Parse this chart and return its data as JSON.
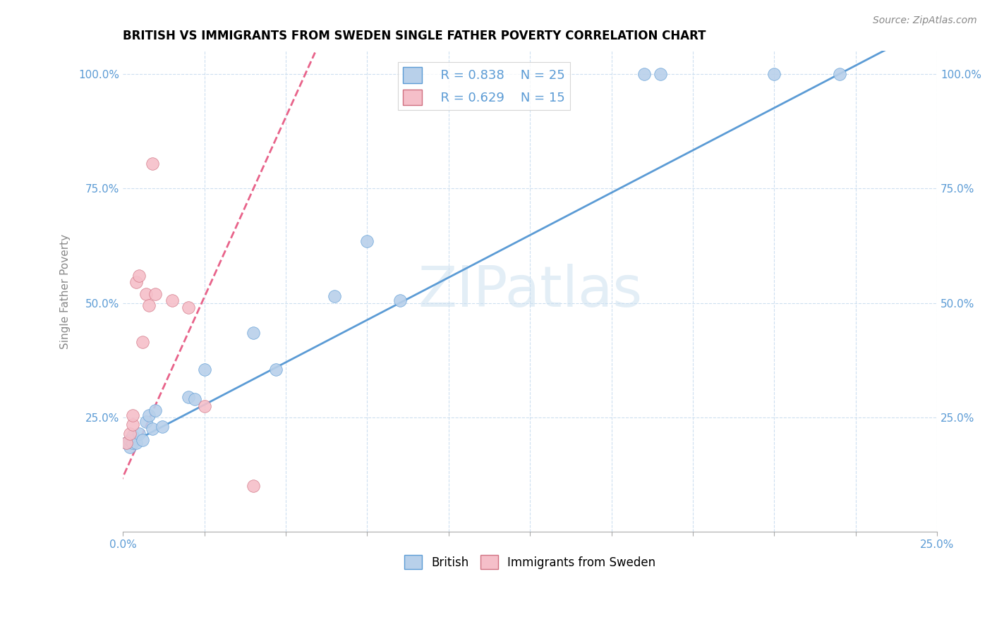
{
  "title": "BRITISH VS IMMIGRANTS FROM SWEDEN SINGLE FATHER POVERTY CORRELATION CHART",
  "source": "Source: ZipAtlas.com",
  "ylabel": "Single Father Poverty",
  "xmin": 0.0,
  "xmax": 0.25,
  "ymin": 0.0,
  "ymax": 1.05,
  "xtick_vals": [
    0.0,
    0.025,
    0.05,
    0.075,
    0.1,
    0.125,
    0.15,
    0.175,
    0.2,
    0.225,
    0.25
  ],
  "ytick_vals": [
    0.0,
    0.25,
    0.5,
    0.75,
    1.0
  ],
  "ytick_labels": [
    "",
    "25.0%",
    "50.0%",
    "75.0%",
    "100.0%"
  ],
  "xtick_labels": [
    "0.0%",
    "",
    "",
    "",
    "",
    "",
    "",
    "",
    "",
    "",
    "25.0%"
  ],
  "british_color": "#b8d0ea",
  "sweden_color": "#f5bfc9",
  "british_line_color": "#5b9bd5",
  "sweden_line_color": "#e8638a",
  "watermark": "ZIPatlas",
  "legend_R_british": "R = 0.838",
  "legend_N_british": "N = 25",
  "legend_R_sweden": "R = 0.629",
  "legend_N_sweden": "N = 15",
  "british_x": [
    0.001,
    0.002,
    0.002,
    0.003,
    0.003,
    0.004,
    0.005,
    0.006,
    0.007,
    0.008,
    0.009,
    0.01,
    0.012,
    0.02,
    0.022,
    0.025,
    0.04,
    0.047,
    0.065,
    0.075,
    0.085,
    0.16,
    0.165,
    0.2,
    0.22
  ],
  "british_y": [
    0.195,
    0.185,
    0.2,
    0.195,
    0.21,
    0.195,
    0.215,
    0.2,
    0.24,
    0.255,
    0.225,
    0.265,
    0.23,
    0.295,
    0.29,
    0.355,
    0.435,
    0.355,
    0.515,
    0.635,
    0.505,
    1.0,
    1.0,
    1.0,
    1.0
  ],
  "sweden_x": [
    0.001,
    0.002,
    0.003,
    0.003,
    0.004,
    0.005,
    0.006,
    0.007,
    0.008,
    0.009,
    0.01,
    0.015,
    0.02,
    0.025,
    0.04
  ],
  "sweden_y": [
    0.195,
    0.215,
    0.235,
    0.255,
    0.545,
    0.56,
    0.415,
    0.52,
    0.495,
    0.805,
    0.52,
    0.505,
    0.49,
    0.275,
    0.1
  ],
  "british_line_x0": 0.0,
  "british_line_y0": 0.185,
  "british_line_x1": 0.22,
  "british_line_y1": 1.0,
  "sweden_line_x0": 0.0,
  "sweden_line_y0": 0.12,
  "sweden_line_x1": 0.056,
  "sweden_line_y1": 1.0
}
